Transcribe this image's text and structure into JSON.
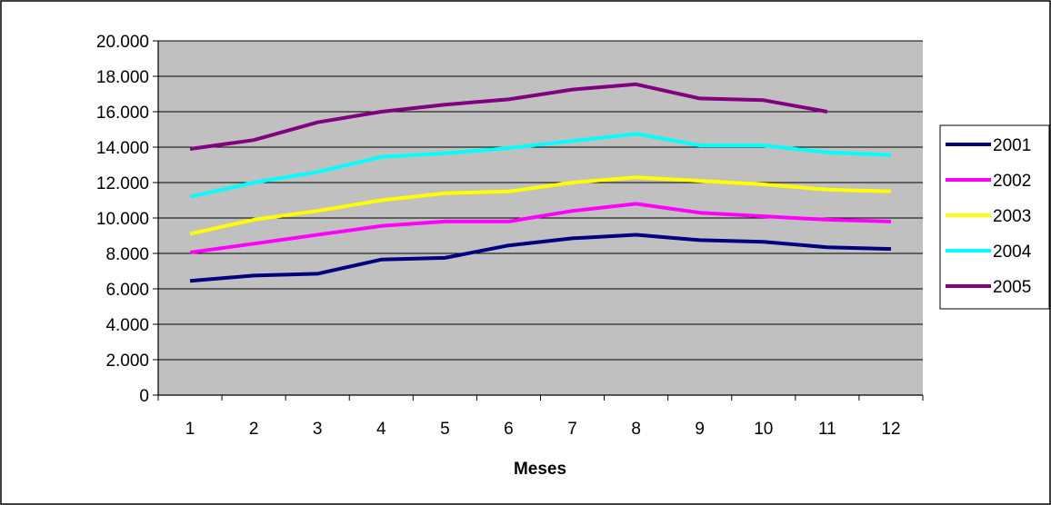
{
  "chart_data": {
    "type": "line",
    "title": "",
    "xlabel": "Meses",
    "ylabel": "",
    "categories": [
      "1",
      "2",
      "3",
      "4",
      "5",
      "6",
      "7",
      "8",
      "9",
      "10",
      "11",
      "12"
    ],
    "y_tick_labels": [
      "0",
      "2.000",
      "4.000",
      "6.000",
      "8.000",
      "10.000",
      "12.000",
      "14.000",
      "16.000",
      "18.000",
      "20.000"
    ],
    "ylim": [
      0,
      20000
    ],
    "y_step": 2000,
    "grid": true,
    "legend_position": "right",
    "plot_background": "#c0c0c0",
    "series": [
      {
        "name": "2001",
        "color": "#000080",
        "values": [
          6450,
          6750,
          6850,
          7650,
          7750,
          8450,
          8850,
          9050,
          8750,
          8650,
          8350,
          8250
        ]
      },
      {
        "name": "2002",
        "color": "#ff00ff",
        "values": [
          8050,
          8550,
          9050,
          9550,
          9800,
          9800,
          10400,
          10800,
          10300,
          10100,
          9900,
          9800
        ]
      },
      {
        "name": "2003",
        "color": "#ffff00",
        "values": [
          9100,
          9900,
          10400,
          11000,
          11400,
          11500,
          12000,
          12300,
          12100,
          11900,
          11600,
          11500
        ]
      },
      {
        "name": "2004",
        "color": "#00ffff",
        "values": [
          11200,
          12000,
          12600,
          13450,
          13650,
          13950,
          14350,
          14750,
          14100,
          14100,
          13700,
          13550
        ]
      },
      {
        "name": "2005",
        "color": "#800080",
        "values": [
          13900,
          14400,
          15400,
          16000,
          16400,
          16700,
          17250,
          17550,
          16750,
          16650,
          16000,
          null
        ]
      }
    ]
  }
}
